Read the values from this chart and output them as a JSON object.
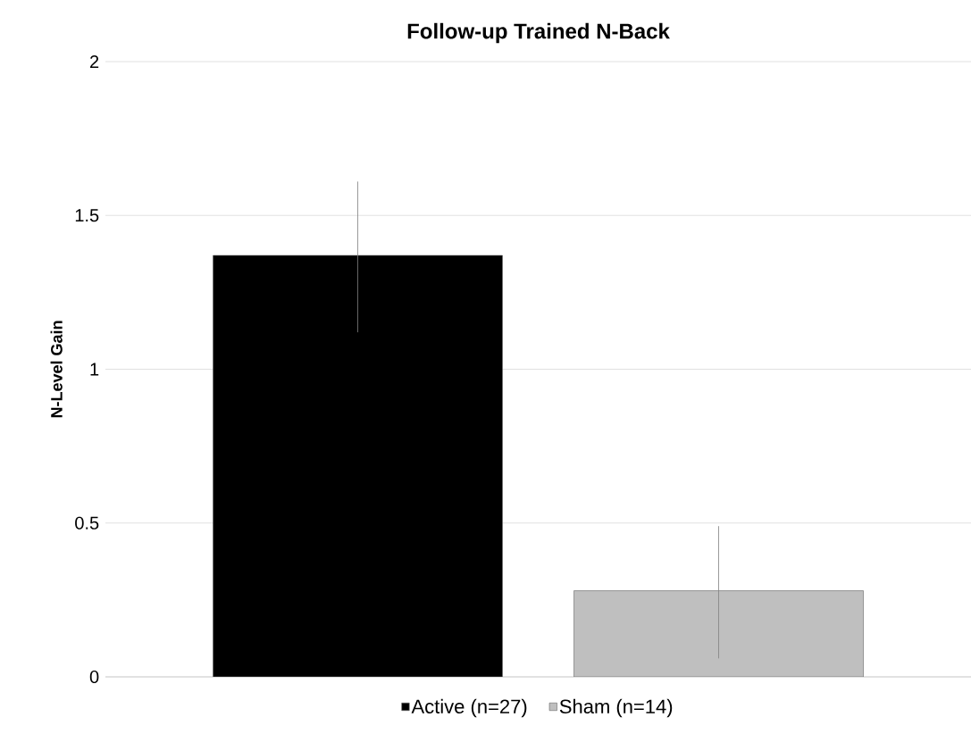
{
  "chart_data": {
    "type": "bar",
    "title": "Follow-up Trained N-Back",
    "ylabel": "N-Level Gain",
    "categories": [
      null
    ],
    "series": [
      {
        "name": "Active (n=27)",
        "color": "#000000",
        "values": [
          1.37
        ],
        "errors": [
          [
            1.12,
            1.61
          ]
        ]
      },
      {
        "name": "Sham (n=14)",
        "color": "#bfbfbf",
        "values": [
          0.28
        ],
        "errors": [
          [
            0.06,
            0.49
          ]
        ]
      }
    ],
    "ylim": [
      0,
      2
    ],
    "yticks": [
      0,
      0.5,
      1,
      1.5,
      2
    ],
    "grid": "y",
    "legend": "bottom"
  }
}
